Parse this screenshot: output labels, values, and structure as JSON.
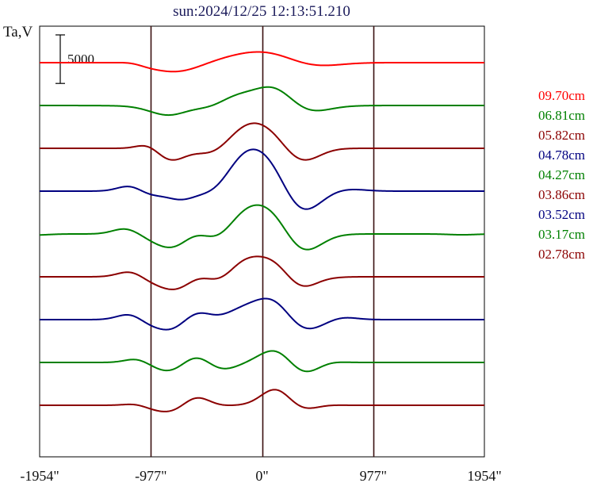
{
  "chart_data": {
    "type": "line",
    "title": "sun:2024/12/25 12:13:51.210",
    "ylabel": "Ta,V",
    "xlabel": "",
    "x_ticks": [
      {
        "value": -1954,
        "label": "-1954\""
      },
      {
        "value": -977,
        "label": "-977\""
      },
      {
        "value": 0,
        "label": "0\""
      },
      {
        "value": 977,
        "label": "977\""
      },
      {
        "value": 1954,
        "label": "1954\""
      }
    ],
    "xlim": [
      -1954,
      1954
    ],
    "vertical_grid_at": [
      -977,
      0,
      977
    ],
    "scale_bar": {
      "value": 5000,
      "label": "5000"
    },
    "offset_spacing": 7000,
    "legend_position": "right",
    "series": [
      {
        "name": "09.70cm",
        "color": "#ff0000",
        "features": [
          [
            -1100,
            400,
            100
          ],
          [
            -1050,
            -400,
            100
          ],
          [
            -880,
            -700,
            170
          ],
          [
            -690,
            -1500,
            190
          ],
          [
            -180,
            1700,
            240
          ],
          [
            -300,
            -500,
            200
          ],
          [
            190,
            2000,
            220
          ],
          [
            290,
            -1400,
            210
          ],
          [
            520,
            -400,
            200
          ],
          [
            -600,
            300,
            250
          ]
        ]
      },
      {
        "name": "06.81cm",
        "color": "#008000",
        "features": [
          [
            -790,
            -2000,
            170
          ],
          [
            -610,
            1000,
            160
          ],
          [
            -460,
            -1100,
            150
          ],
          [
            -160,
            3400,
            190
          ],
          [
            -100,
            -1600,
            150
          ],
          [
            140,
            4400,
            180
          ],
          [
            300,
            -2400,
            200
          ],
          [
            -300,
            -300,
            500
          ]
        ]
      },
      {
        "name": "05.82cm",
        "color": "#8b0000",
        "features": [
          [
            -990,
            1200,
            100
          ],
          [
            -780,
            -2800,
            150
          ],
          [
            -620,
            1600,
            140
          ],
          [
            -480,
            -1900,
            160
          ],
          [
            -140,
            3600,
            170
          ],
          [
            170,
            5000,
            180
          ],
          [
            240,
            -4000,
            160
          ],
          [
            360,
            -2000,
            150
          ]
        ]
      },
      {
        "name": "04.78cm",
        "color": "#000080",
        "features": [
          [
            -1150,
            1100,
            110
          ],
          [
            -1000,
            -700,
            110
          ],
          [
            -800,
            1300,
            130
          ],
          [
            -680,
            -4800,
            160
          ],
          [
            -580,
            3300,
            150
          ],
          [
            -450,
            -1400,
            120
          ],
          [
            -150,
            5400,
            160
          ],
          [
            120,
            6200,
            180
          ],
          [
            300,
            -6200,
            170
          ],
          [
            740,
            400,
            150
          ]
        ]
      },
      {
        "name": "04.27cm",
        "color": "#008000",
        "features": [
          [
            -2000,
            -200,
            120
          ],
          [
            -1200,
            1000,
            110
          ],
          [
            -950,
            -700,
            120
          ],
          [
            -720,
            -3700,
            150
          ],
          [
            -600,
            3200,
            140
          ],
          [
            -420,
            -2300,
            150
          ],
          [
            -140,
            4000,
            170
          ],
          [
            150,
            5300,
            170
          ],
          [
            300,
            -5600,
            170
          ],
          [
            1760,
            -150,
            120
          ]
        ]
      },
      {
        "name": "03.86cm",
        "color": "#8b0000",
        "features": [
          [
            -1150,
            1100,
            110
          ],
          [
            -990,
            -600,
            120
          ],
          [
            -700,
            -3600,
            160
          ],
          [
            -550,
            3400,
            150
          ],
          [
            -410,
            -2600,
            140
          ],
          [
            -160,
            2900,
            150
          ],
          [
            140,
            3900,
            160
          ],
          [
            310,
            -3700,
            160
          ],
          [
            470,
            500,
            120
          ]
        ]
      },
      {
        "name": "03.52cm",
        "color": "#000080",
        "features": [
          [
            -1150,
            1200,
            110
          ],
          [
            -1020,
            -700,
            110
          ],
          [
            -820,
            -1000,
            130
          ],
          [
            -690,
            -2600,
            150
          ],
          [
            -580,
            4000,
            150
          ],
          [
            -450,
            -1400,
            130
          ],
          [
            -170,
            1800,
            160
          ],
          [
            120,
            4400,
            160
          ],
          [
            320,
            -2900,
            170
          ],
          [
            700,
            500,
            120
          ]
        ]
      },
      {
        "name": "03.17cm",
        "color": "#008000",
        "features": [
          [
            -1100,
            700,
            100
          ],
          [
            -900,
            -500,
            120
          ],
          [
            -700,
            -3000,
            150
          ],
          [
            -600,
            3900,
            140
          ],
          [
            -400,
            -1800,
            150
          ],
          [
            160,
            3700,
            150
          ],
          [
            320,
            -3300,
            160
          ],
          [
            550,
            500,
            120
          ]
        ]
      },
      {
        "name": "02.78cm",
        "color": "#8b0000",
        "features": [
          [
            -1100,
            300,
            100
          ],
          [
            -970,
            -400,
            100
          ],
          [
            -790,
            -600,
            130
          ],
          [
            -690,
            -1700,
            150
          ],
          [
            -580,
            3400,
            140
          ],
          [
            -460,
            -1000,
            120
          ],
          [
            130,
            3400,
            130
          ],
          [
            330,
            -1200,
            160
          ],
          [
            520,
            300,
            120
          ]
        ]
      }
    ]
  }
}
